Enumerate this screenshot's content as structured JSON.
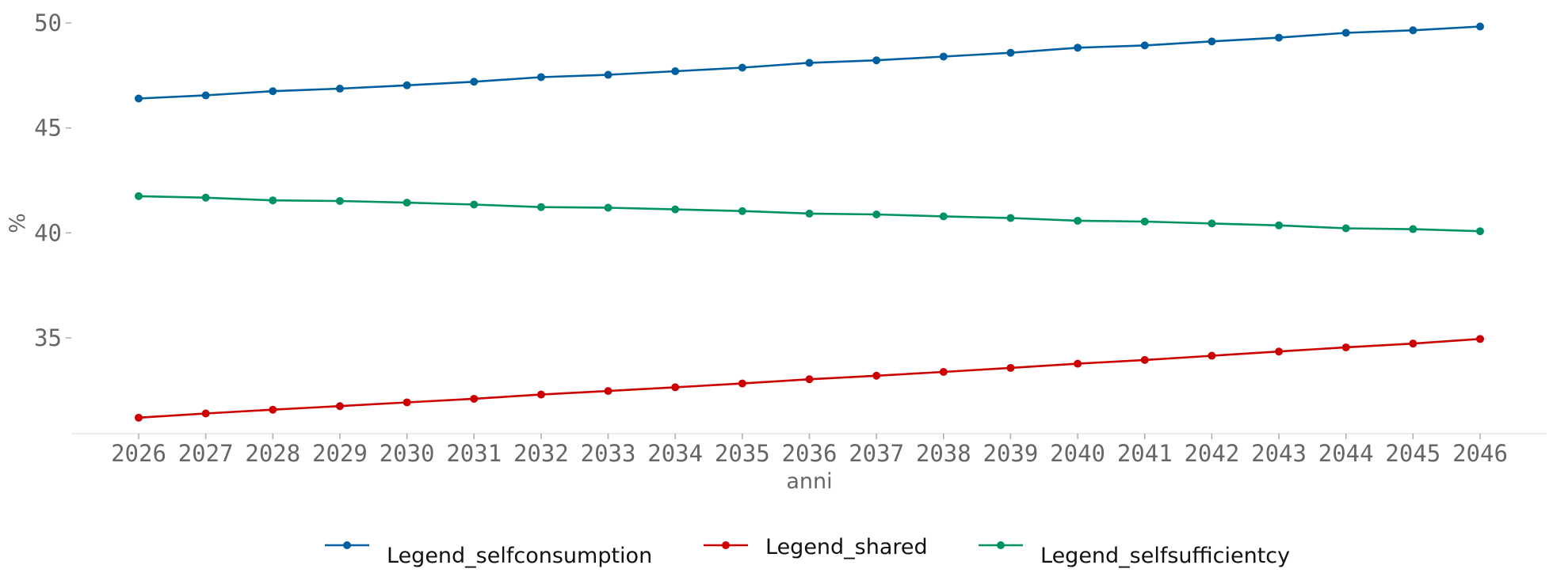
{
  "chart_data": {
    "type": "line",
    "title": "",
    "xlabel": "anni",
    "ylabel": "%",
    "x": [
      2026,
      2027,
      2028,
      2029,
      2030,
      2031,
      2032,
      2033,
      2034,
      2035,
      2036,
      2037,
      2038,
      2039,
      2040,
      2041,
      2042,
      2043,
      2044,
      2045,
      2046
    ],
    "yticks": [
      35,
      40,
      45,
      50
    ],
    "ylim": [
      30.2,
      50.7
    ],
    "grid": false,
    "legend_position": "bottom",
    "series": [
      {
        "name": "Legend_selfconsumption",
        "color": "#00609f",
        "values": [
          46.4,
          46.55,
          46.75,
          46.87,
          47.03,
          47.2,
          47.42,
          47.53,
          47.7,
          47.87,
          48.1,
          48.22,
          48.4,
          48.58,
          48.82,
          48.93,
          49.12,
          49.3,
          49.53,
          49.65,
          49.83
        ]
      },
      {
        "name": "Legend_shared",
        "color": "#cc0000",
        "values": [
          31.2,
          31.4,
          31.58,
          31.75,
          31.93,
          32.1,
          32.3,
          32.47,
          32.65,
          32.83,
          33.03,
          33.2,
          33.38,
          33.57,
          33.77,
          33.95,
          34.15,
          34.35,
          34.55,
          34.73,
          34.95
        ]
      },
      {
        "name": "Legend_selfsufficientcy",
        "color": "#009166",
        "values": [
          41.75,
          41.68,
          41.55,
          41.52,
          41.44,
          41.35,
          41.23,
          41.2,
          41.12,
          41.04,
          40.92,
          40.88,
          40.79,
          40.71,
          40.58,
          40.54,
          40.45,
          40.36,
          40.22,
          40.18,
          40.08
        ]
      }
    ]
  }
}
